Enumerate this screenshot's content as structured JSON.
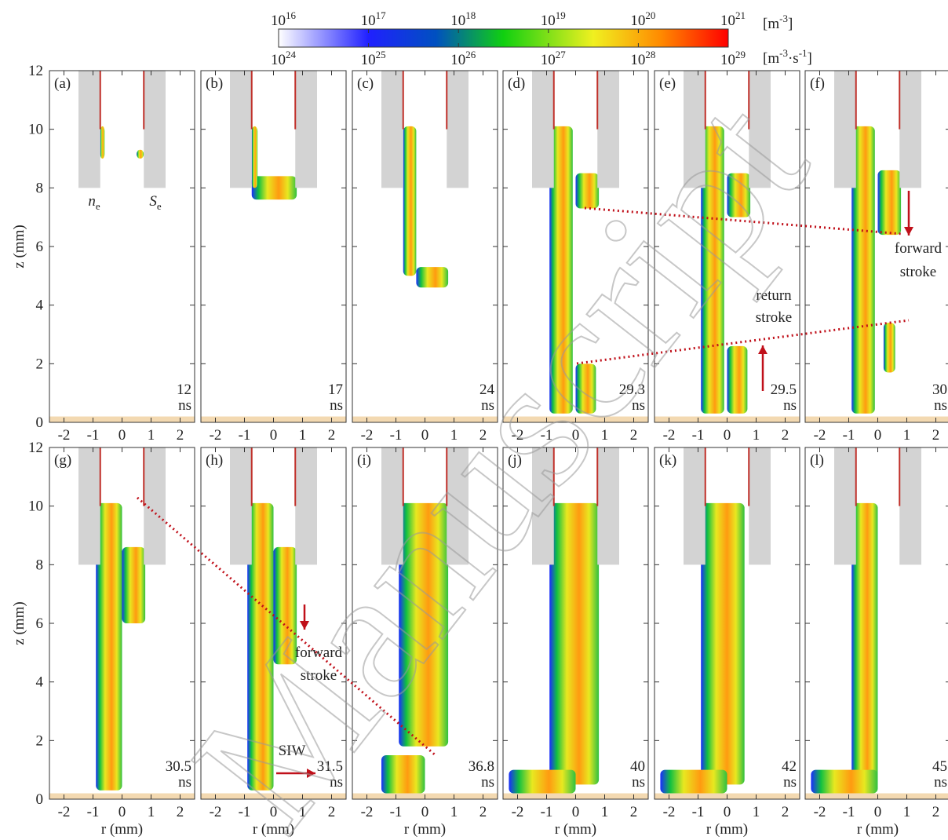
{
  "colorbar": {
    "top_labels": [
      {
        "base": "10",
        "exp": "16"
      },
      {
        "base": "10",
        "exp": "17"
      },
      {
        "base": "10",
        "exp": "18"
      },
      {
        "base": "10",
        "exp": "19"
      },
      {
        "base": "10",
        "exp": "20"
      },
      {
        "base": "10",
        "exp": "21"
      }
    ],
    "bottom_labels": [
      {
        "base": "10",
        "exp": "24"
      },
      {
        "base": "10",
        "exp": "25"
      },
      {
        "base": "10",
        "exp": "26"
      },
      {
        "base": "10",
        "exp": "27"
      },
      {
        "base": "10",
        "exp": "28"
      },
      {
        "base": "10",
        "exp": "29"
      }
    ],
    "top_unit": {
      "start": "[m",
      "exp": "-3",
      "end": "]"
    },
    "bottom_unit": {
      "start": "[m",
      "exp": "-3",
      "mid": "·s",
      "exp2": "-1",
      "end": "]"
    }
  },
  "chart_data": [
    {
      "type": "contour",
      "label": "(a)",
      "time": "12",
      "time_unit": "ns",
      "ylabel": "z (mm)",
      "xlim": [
        -2.5,
        2.5
      ],
      "xticks": [
        -2,
        -1,
        0,
        1,
        2
      ],
      "ylim": [
        0,
        12
      ],
      "yticks": [
        0,
        2,
        4,
        6,
        8,
        10,
        12
      ],
      "annotations": [
        {
          "text": "n",
          "sub": "e"
        },
        {
          "text": "S",
          "sub": "e"
        }
      ]
    },
    {
      "type": "contour",
      "label": "(b)",
      "time": "17",
      "time_unit": "ns",
      "xlim": [
        -2.5,
        2.5
      ],
      "xticks": [
        -2,
        -1,
        0,
        1,
        2
      ],
      "ylim": [
        0,
        12
      ],
      "yticks": [
        0,
        2,
        4,
        6,
        8,
        10,
        12
      ]
    },
    {
      "type": "contour",
      "label": "(c)",
      "time": "24",
      "time_unit": "ns",
      "xlim": [
        -2.5,
        2.5
      ],
      "xticks": [
        -2,
        -1,
        0,
        1,
        2
      ],
      "ylim": [
        0,
        12
      ],
      "yticks": [
        0,
        2,
        4,
        6,
        8,
        10,
        12
      ]
    },
    {
      "type": "contour",
      "label": "(d)",
      "time": "29.3",
      "time_unit": "ns",
      "xlim": [
        -2.5,
        2.5
      ],
      "xticks": [
        -2,
        -1,
        0,
        1,
        2
      ],
      "ylim": [
        0,
        12
      ],
      "yticks": [
        0,
        2,
        4,
        6,
        8,
        10,
        12
      ]
    },
    {
      "type": "contour",
      "label": "(e)",
      "time": "29.5",
      "time_unit": "ns",
      "xlim": [
        -2.5,
        2.5
      ],
      "xticks": [
        -2,
        -1,
        0,
        1,
        2
      ],
      "ylim": [
        0,
        12
      ],
      "yticks": [
        0,
        2,
        4,
        6,
        8,
        10,
        12
      ],
      "annotations": [
        {
          "text": "return"
        },
        {
          "text": "stroke"
        }
      ]
    },
    {
      "type": "contour",
      "label": "(f)",
      "time": "30",
      "time_unit": "ns",
      "xlim": [
        -2.5,
        2.5
      ],
      "xticks": [
        -2,
        -1,
        0,
        1,
        2
      ],
      "ylim": [
        0,
        12
      ],
      "yticks": [
        0,
        2,
        4,
        6,
        8,
        10,
        12
      ],
      "annotations": [
        {
          "text": "forward"
        },
        {
          "text": "stroke"
        }
      ]
    },
    {
      "type": "contour",
      "label": "(g)",
      "time": "30.5",
      "time_unit": "ns",
      "ylabel": "z (mm)",
      "xlabel": "r (mm)",
      "xlim": [
        -2.5,
        2.5
      ],
      "xticks": [
        -2,
        -1,
        0,
        1,
        2
      ],
      "ylim": [
        0,
        12
      ],
      "yticks": [
        0,
        2,
        4,
        6,
        8,
        10,
        12
      ]
    },
    {
      "type": "contour",
      "label": "(h)",
      "time": "31.5",
      "time_unit": "ns",
      "xlabel": "r (mm)",
      "xlim": [
        -2.5,
        2.5
      ],
      "xticks": [
        -2,
        -1,
        0,
        1,
        2
      ],
      "ylim": [
        0,
        12
      ],
      "yticks": [
        0,
        2,
        4,
        6,
        8,
        10,
        12
      ],
      "annotations": [
        {
          "text": "forward"
        },
        {
          "text": "stroke"
        },
        {
          "text": "SIW"
        }
      ]
    },
    {
      "type": "contour",
      "label": "(i)",
      "time": "36.8",
      "time_unit": "ns",
      "xlabel": "r (mm)",
      "xlim": [
        -2.5,
        2.5
      ],
      "xticks": [
        -2,
        -1,
        0,
        1,
        2
      ],
      "ylim": [
        0,
        12
      ],
      "yticks": [
        0,
        2,
        4,
        6,
        8,
        10,
        12
      ]
    },
    {
      "type": "contour",
      "label": "(j)",
      "time": "40",
      "time_unit": "ns",
      "xlabel": "r (mm)",
      "xlim": [
        -2.5,
        2.5
      ],
      "xticks": [
        -2,
        -1,
        0,
        1,
        2
      ],
      "ylim": [
        0,
        12
      ],
      "yticks": [
        0,
        2,
        4,
        6,
        8,
        10,
        12
      ]
    },
    {
      "type": "contour",
      "label": "(k)",
      "time": "42",
      "time_unit": "ns",
      "xlabel": "r (mm)",
      "xlim": [
        -2.5,
        2.5
      ],
      "xticks": [
        -2,
        -1,
        0,
        1,
        2
      ],
      "ylim": [
        0,
        12
      ],
      "yticks": [
        0,
        2,
        4,
        6,
        8,
        10,
        12
      ]
    },
    {
      "type": "contour",
      "label": "(l)",
      "time": "45",
      "time_unit": "ns",
      "xlabel": "r (mm)",
      "xlim": [
        -2.5,
        2.5
      ],
      "xticks": [
        -2,
        -1,
        0,
        1,
        2
      ],
      "ylim": [
        0,
        12
      ],
      "yticks": [
        0,
        2,
        4,
        6,
        8,
        10,
        12
      ]
    }
  ],
  "watermark": "Manuscript"
}
